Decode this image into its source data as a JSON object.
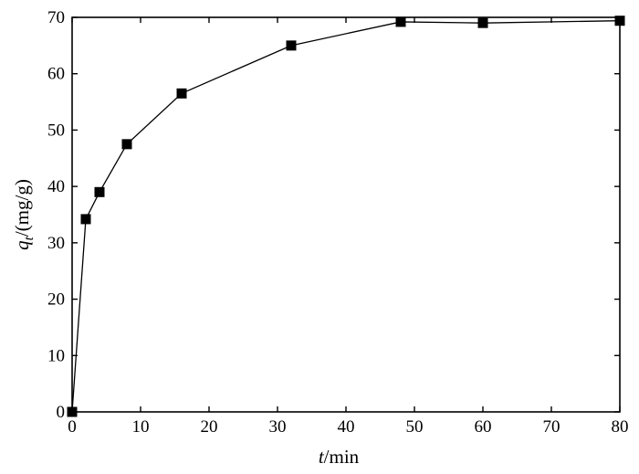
{
  "chart_data": {
    "type": "line",
    "title": "",
    "xlabel_var": "t",
    "xlabel_unit": "/min",
    "ylabel_var": "q",
    "ylabel_sub": "t",
    "ylabel_unit": "/(mg/g)",
    "xlim": [
      0,
      80
    ],
    "ylim": [
      0,
      70
    ],
    "x_ticks": [
      0,
      10,
      20,
      30,
      40,
      50,
      60,
      70,
      80
    ],
    "y_ticks": [
      0,
      10,
      20,
      30,
      40,
      50,
      60,
      70
    ],
    "grid": false,
    "marker": "square",
    "series": [
      {
        "x": [
          0,
          2,
          4,
          8,
          16,
          32,
          48,
          60,
          80
        ],
        "y": [
          0,
          34.2,
          39.0,
          47.5,
          56.5,
          65.0,
          69.2,
          69.0,
          69.4
        ]
      }
    ]
  }
}
